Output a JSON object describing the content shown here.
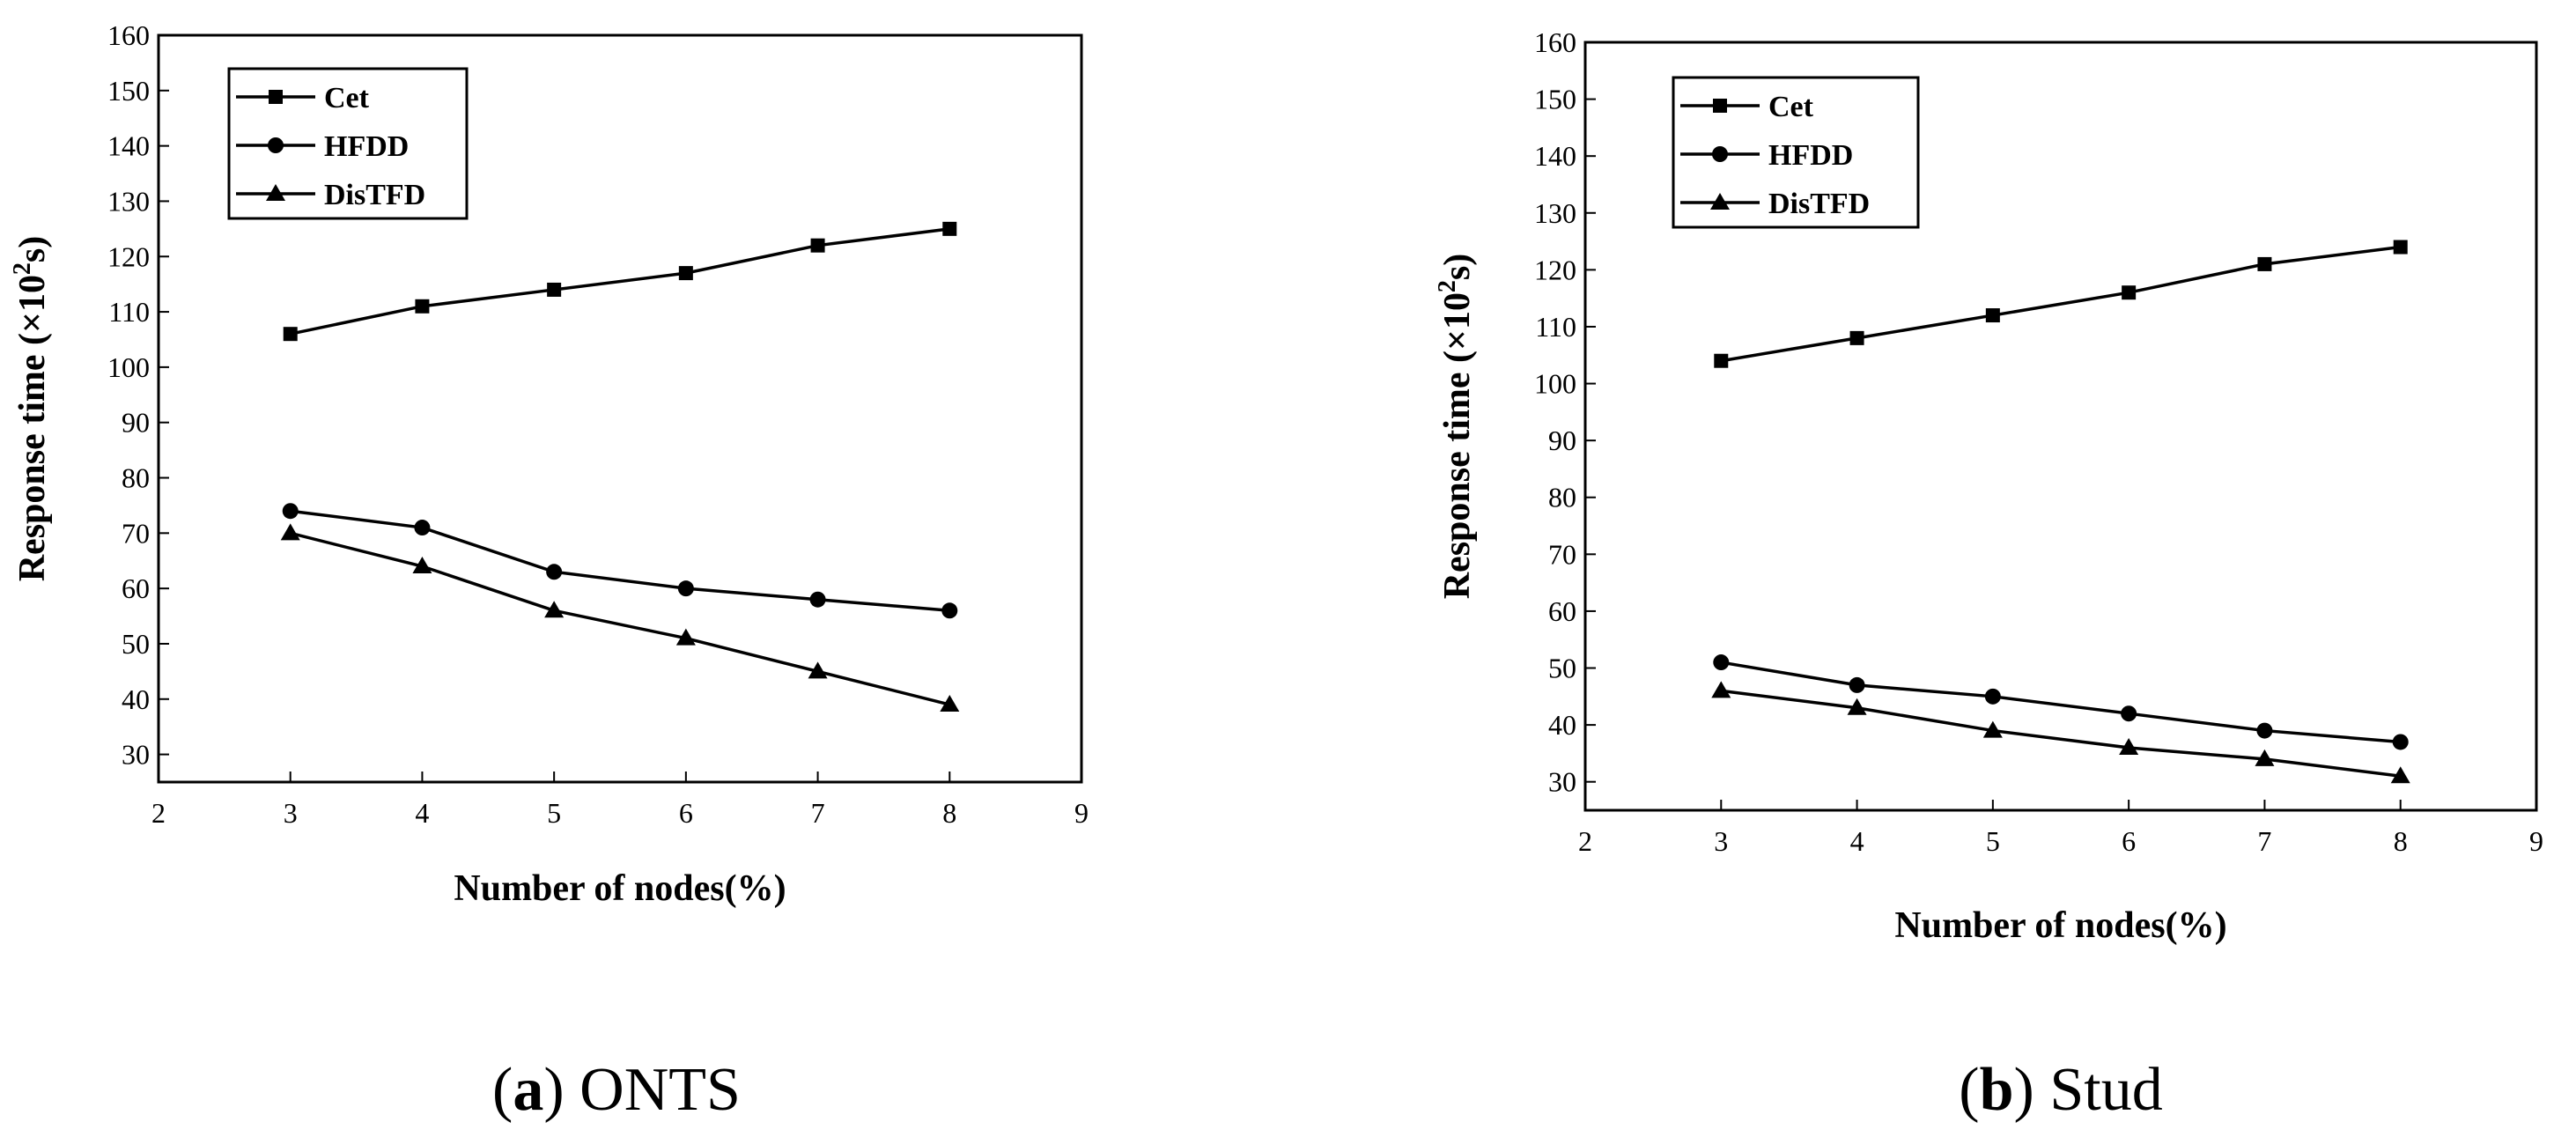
{
  "chart_data": [
    {
      "type": "line",
      "caption_letter": "a",
      "caption_text": "ONTS",
      "xlabel": "Number of nodes(%)",
      "ylabel_main": "Response time (×10",
      "ylabel_sup": "2",
      "ylabel_end": "s)",
      "xlim": [
        2,
        9
      ],
      "ylim": [
        25,
        160
      ],
      "xticks": [
        2,
        3,
        4,
        5,
        6,
        7,
        8,
        9
      ],
      "yticks": [
        30,
        40,
        50,
        60,
        70,
        80,
        90,
        100,
        110,
        120,
        130,
        140,
        150,
        160
      ],
      "x": [
        3,
        4,
        5,
        6,
        7,
        8
      ],
      "series": [
        {
          "name": "Cet",
          "marker": "square",
          "values": [
            106,
            111,
            114,
            117,
            122,
            125
          ]
        },
        {
          "name": "HFDD",
          "marker": "circle",
          "values": [
            74,
            71,
            63,
            60,
            58,
            56
          ]
        },
        {
          "name": "DisTFD",
          "marker": "triangle",
          "values": [
            70,
            64,
            56,
            51,
            45,
            39
          ]
        }
      ]
    },
    {
      "type": "line",
      "caption_letter": "b",
      "caption_text": "Stud",
      "xlabel": "Number of nodes(%)",
      "ylabel_main": "Response time (×10",
      "ylabel_sup": "2",
      "ylabel_end": "s)",
      "xlim": [
        2,
        9
      ],
      "ylim": [
        25,
        160
      ],
      "xticks": [
        2,
        3,
        4,
        5,
        6,
        7,
        8,
        9
      ],
      "yticks": [
        30,
        40,
        50,
        60,
        70,
        80,
        90,
        100,
        110,
        120,
        130,
        140,
        150,
        160
      ],
      "x": [
        3,
        4,
        5,
        6,
        7,
        8
      ],
      "series": [
        {
          "name": "Cet",
          "marker": "square",
          "values": [
            104,
            108,
            112,
            116,
            121,
            124
          ]
        },
        {
          "name": "HFDD",
          "marker": "circle",
          "values": [
            51,
            47,
            45,
            42,
            39,
            37
          ]
        },
        {
          "name": "DisTFD",
          "marker": "triangle",
          "values": [
            46,
            43,
            39,
            36,
            34,
            31
          ]
        }
      ]
    }
  ]
}
